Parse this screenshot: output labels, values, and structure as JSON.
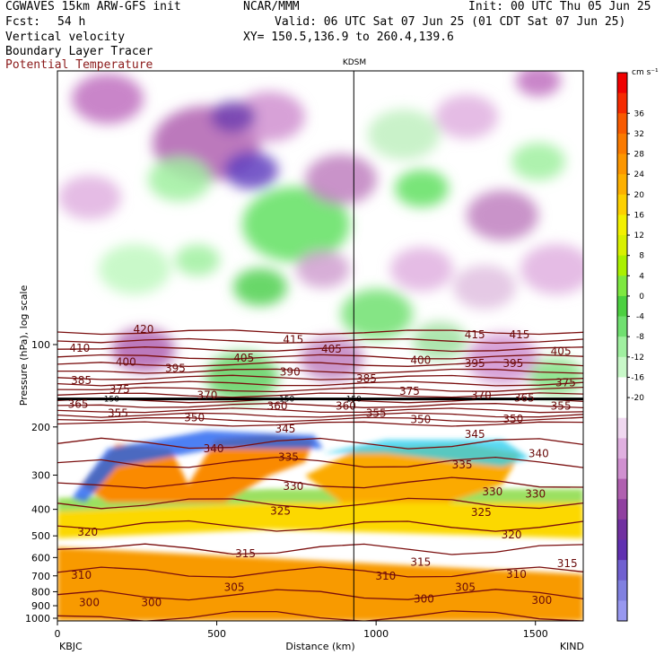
{
  "header": {
    "model": "CGWAVES 15km ARW-GFS init",
    "fcst_label": "Fcst:",
    "fcst_value": "54 h",
    "org": "NCAR/MMM",
    "init": "Init: 00 UTC Thu 05 Jun 25",
    "valid": "Valid: 06 UTC Sat 07 Jun 25 (01 CDT Sat 07 Jun 25)",
    "xy": "XY= 150.5,136.9 to 260.4,139.6",
    "fields": [
      "Vertical velocity",
      "Boundary Layer Tracer",
      "Potential Temperature"
    ],
    "field_colors": [
      "#000000",
      "#000000",
      "#8b1a1a"
    ]
  },
  "colorbar": {
    "unit": "cm s⁻¹",
    "tick_labels": [
      "36",
      "32",
      "28",
      "24",
      "20",
      "16",
      "12",
      "8",
      "4",
      "0",
      "-4",
      "-8",
      "-12",
      "-16",
      "-20"
    ],
    "colors": [
      "#f00000",
      "#f52a00",
      "#f85a00",
      "#fa7a00",
      "#fc9600",
      "#fdb000",
      "#fdd000",
      "#f2f000",
      "#d8f000",
      "#aaf000",
      "#7ee840",
      "#4cd040",
      "#70e070",
      "#a0f0a0",
      "#c8f8c8",
      "#ffffff",
      "#ffffff",
      "#f0d8f0",
      "#e0b0e0",
      "#d090d0",
      "#b060b0",
      "#9040a0",
      "#7030a0",
      "#6030b0",
      "#7060d0",
      "#8080e0",
      "#9898f0"
    ]
  },
  "station_label": "KDSM",
  "chart_data": {
    "type": "heatmap",
    "title": "",
    "xlabel": "Distance (km)",
    "ylabel": "Pressure (hPa), log scale",
    "x_ticks": [
      0,
      500,
      1000,
      1500
    ],
    "xlim": [
      0,
      1650
    ],
    "y_ticks": [
      100,
      200,
      300,
      400,
      500,
      600,
      700,
      800,
      900,
      1000
    ],
    "ylim": [
      1050,
      10
    ],
    "y_scale": "log",
    "left_station": "KBJC",
    "right_station": "KIND",
    "marker_line_x": 930,
    "theta_labels": [
      {
        "x": 270,
        "p": 88,
        "v": "420"
      },
      {
        "x": 70,
        "p": 103,
        "v": "410"
      },
      {
        "x": 215,
        "p": 116,
        "v": "400"
      },
      {
        "x": 370,
        "p": 122,
        "v": "395"
      },
      {
        "x": 585,
        "p": 112,
        "v": "405"
      },
      {
        "x": 740,
        "p": 96,
        "v": "415"
      },
      {
        "x": 860,
        "p": 104,
        "v": "405"
      },
      {
        "x": 730,
        "p": 126,
        "v": "390"
      },
      {
        "x": 970,
        "p": 133,
        "v": "385"
      },
      {
        "x": 1140,
        "p": 114,
        "v": "400"
      },
      {
        "x": 1310,
        "p": 117,
        "v": "395"
      },
      {
        "x": 1430,
        "p": 117,
        "v": "395"
      },
      {
        "x": 1310,
        "p": 92,
        "v": "415"
      },
      {
        "x": 1450,
        "p": 92,
        "v": "415"
      },
      {
        "x": 1580,
        "p": 106,
        "v": "405"
      },
      {
        "x": 1595,
        "p": 138,
        "v": "375"
      },
      {
        "x": 75,
        "p": 135,
        "v": "385"
      },
      {
        "x": 195,
        "p": 146,
        "v": "375"
      },
      {
        "x": 470,
        "p": 153,
        "v": "370"
      },
      {
        "x": 1105,
        "p": 148,
        "v": "375"
      },
      {
        "x": 1330,
        "p": 153,
        "v": "370"
      },
      {
        "x": 1465,
        "p": 157,
        "v": "365"
      },
      {
        "x": 65,
        "p": 165,
        "v": "365"
      },
      {
        "x": 690,
        "p": 168,
        "v": "360"
      },
      {
        "x": 905,
        "p": 168,
        "v": "360"
      },
      {
        "x": 190,
        "p": 178,
        "v": "355"
      },
      {
        "x": 1000,
        "p": 178,
        "v": "355"
      },
      {
        "x": 1580,
        "p": 168,
        "v": "355"
      },
      {
        "x": 430,
        "p": 185,
        "v": "350"
      },
      {
        "x": 1140,
        "p": 188,
        "v": "350"
      },
      {
        "x": 1430,
        "p": 187,
        "v": "350"
      },
      {
        "x": 715,
        "p": 203,
        "v": "345"
      },
      {
        "x": 1310,
        "p": 213,
        "v": "345"
      },
      {
        "x": 490,
        "p": 240,
        "v": "340"
      },
      {
        "x": 1510,
        "p": 250,
        "v": "340"
      },
      {
        "x": 725,
        "p": 258,
        "v": "335"
      },
      {
        "x": 1270,
        "p": 275,
        "v": "335"
      },
      {
        "x": 740,
        "p": 330,
        "v": "330"
      },
      {
        "x": 1365,
        "p": 345,
        "v": "330"
      },
      {
        "x": 1500,
        "p": 352,
        "v": "330"
      },
      {
        "x": 700,
        "p": 405,
        "v": "325"
      },
      {
        "x": 1330,
        "p": 410,
        "v": "325"
      },
      {
        "x": 95,
        "p": 485,
        "v": "320"
      },
      {
        "x": 1425,
        "p": 495,
        "v": "320"
      },
      {
        "x": 590,
        "p": 580,
        "v": "315"
      },
      {
        "x": 1140,
        "p": 625,
        "v": "315"
      },
      {
        "x": 1600,
        "p": 630,
        "v": "315"
      },
      {
        "x": 75,
        "p": 695,
        "v": "310"
      },
      {
        "x": 1030,
        "p": 700,
        "v": "310"
      },
      {
        "x": 1440,
        "p": 690,
        "v": "310"
      },
      {
        "x": 555,
        "p": 770,
        "v": "305"
      },
      {
        "x": 1280,
        "p": 770,
        "v": "305"
      },
      {
        "x": 100,
        "p": 875,
        "v": "300"
      },
      {
        "x": 295,
        "p": 875,
        "v": "300"
      },
      {
        "x": 1150,
        "p": 850,
        "v": "300"
      },
      {
        "x": 1520,
        "p": 860,
        "v": "300"
      }
    ],
    "tracer_label": "150"
  }
}
